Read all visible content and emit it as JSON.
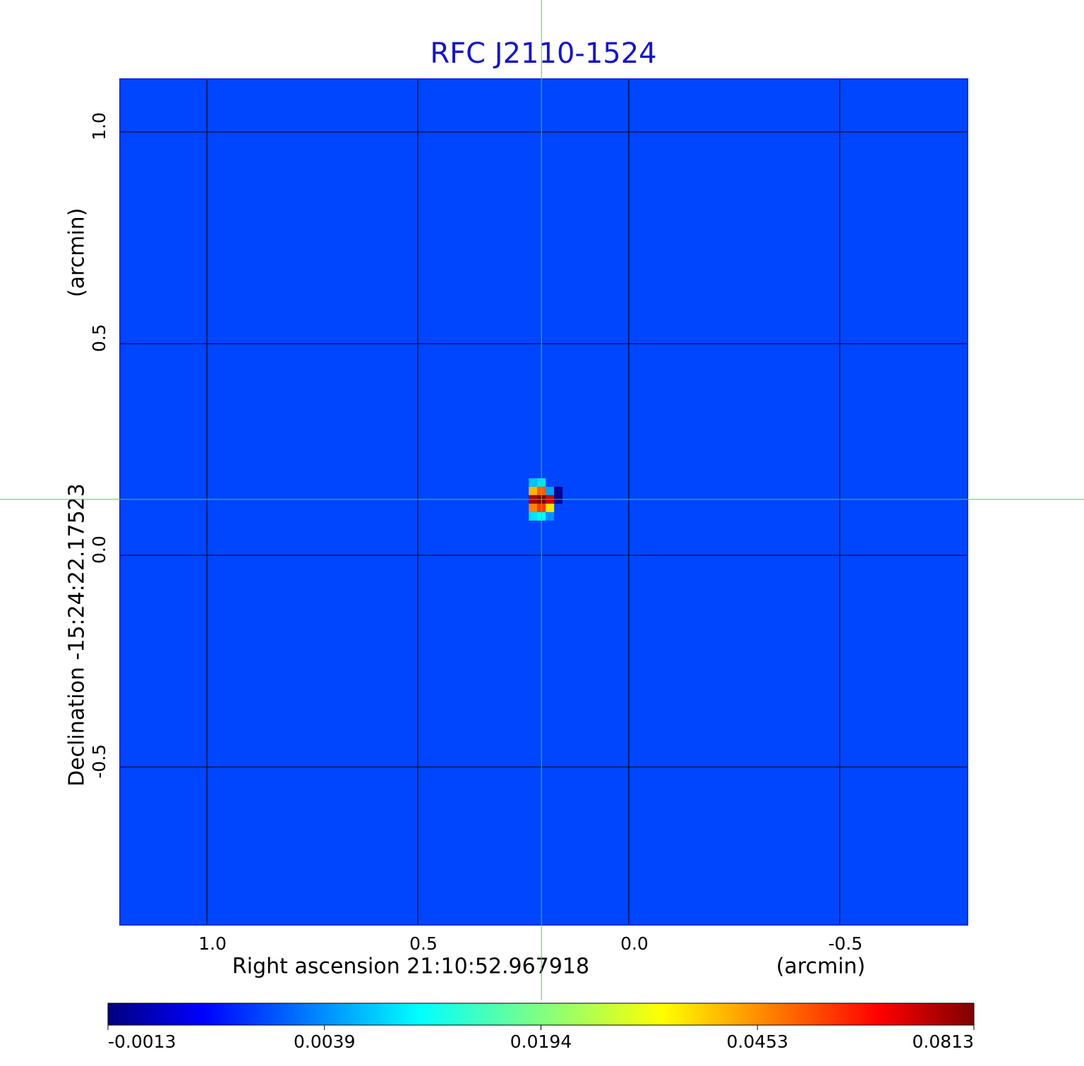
{
  "chart_data": {
    "type": "image",
    "title": "RFC J2110-1524",
    "x_label": "Right ascension  21:10:52.967918",
    "x_unit": "(arcmin)",
    "y_label": "Declination  -15:24:22.17523",
    "y_unit": "(arcmin)",
    "xlim": [
      1.206,
      -0.803
    ],
    "ylim": [
      -0.873,
      1.125
    ],
    "xticks": [
      {
        "value": 1,
        "label": "1.0"
      },
      0.5,
      {
        "value": 0,
        "label": "0.0"
      },
      -0.5
    ],
    "yticks": [
      {
        "value": 1,
        "label": "1.0"
      },
      0.5,
      {
        "value": 0,
        "label": "0.0"
      },
      -0.5
    ],
    "grid": true,
    "colormap": "jet",
    "colorbar_ticks": [
      -0.0013,
      0.0039,
      0.0194,
      0.0453,
      0.0813
    ],
    "background_value": 0.0027,
    "crosshair": {
      "x": 0.207,
      "y": 0.132
    },
    "pixels": {
      "x": [
        0.227,
        0.207,
        0.227,
        0.207,
        0.187,
        0.167,
        0.227,
        0.207,
        0.187,
        0.167,
        0.227,
        0.207,
        0.187,
        0.227,
        0.207,
        0.187
      ],
      "y": [
        0.172,
        0.172,
        0.152,
        0.152,
        0.152,
        0.152,
        0.132,
        0.132,
        0.132,
        0.132,
        0.112,
        0.112,
        0.112,
        0.092,
        0.092,
        0.092
      ],
      "values": [
        0.008,
        0.01,
        0.04,
        0.05,
        0.006,
        -0.001,
        0.075,
        0.0813,
        0.07,
        -0.001,
        0.045,
        0.055,
        0.035,
        0.01,
        0.012,
        0.005
      ]
    }
  }
}
